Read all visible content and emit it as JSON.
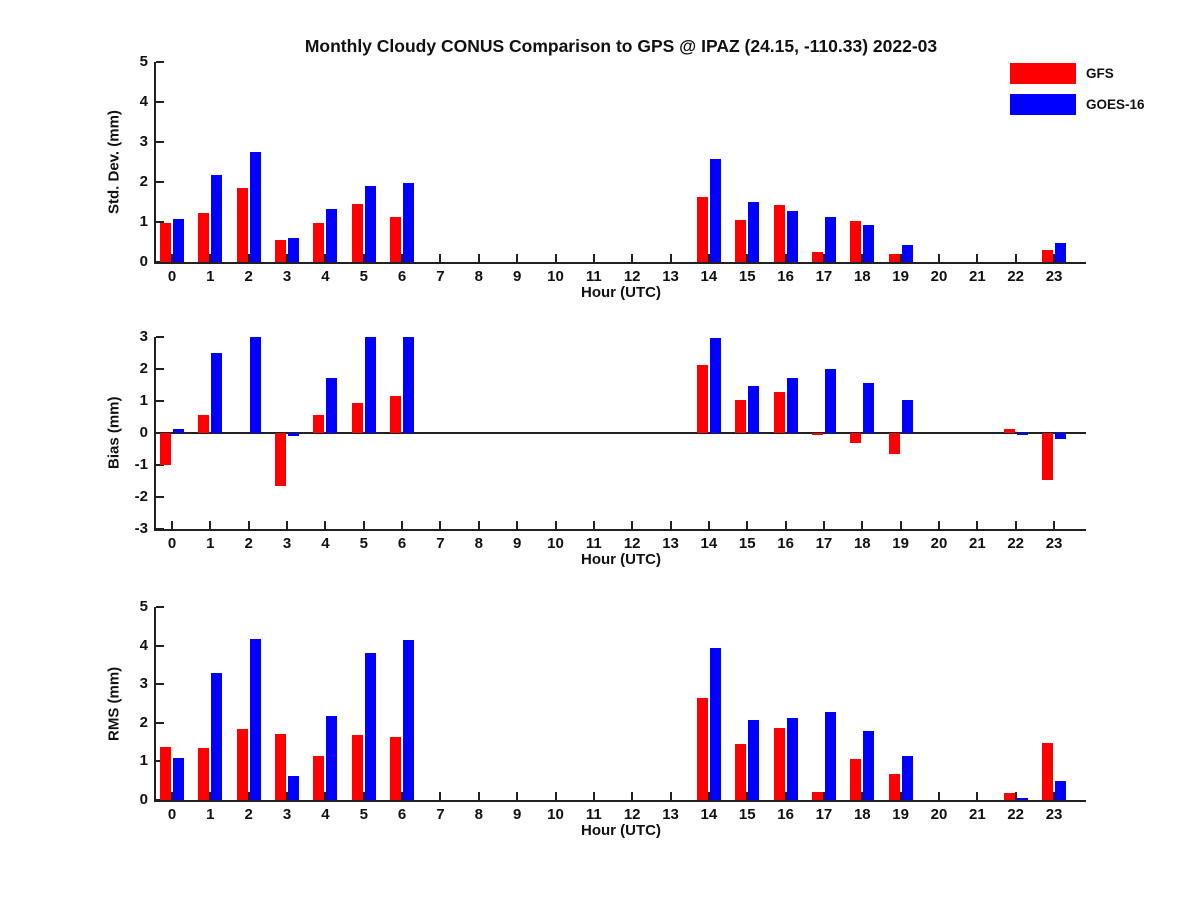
{
  "figure": {
    "title": "Monthly Cloudy CONUS Comparison to GPS @ IPAZ (24.15, -110.33) 2022-03"
  },
  "legend": {
    "position": "top-right",
    "items": [
      {
        "label": "GFS",
        "color": "#ff0000"
      },
      {
        "label": "GOES-16",
        "color": "#0000ff"
      }
    ]
  },
  "chart_data": [
    {
      "type": "bar",
      "ylabel": "Std. Dev. (mm)",
      "xlabel": "Hour (UTC)",
      "ylim": [
        0,
        5
      ],
      "yticks": [
        0,
        1,
        2,
        3,
        4,
        5
      ],
      "grid": false,
      "categories": [
        0,
        1,
        2,
        3,
        4,
        5,
        6,
        7,
        8,
        9,
        10,
        11,
        12,
        13,
        14,
        15,
        16,
        17,
        18,
        19,
        20,
        21,
        22,
        23
      ],
      "series": [
        {
          "name": "GFS",
          "color": "#ff0000",
          "values": [
            0.97,
            1.22,
            1.85,
            0.55,
            0.97,
            1.45,
            1.13,
            null,
            null,
            null,
            null,
            null,
            null,
            null,
            1.62,
            1.05,
            1.43,
            0.25,
            1.03,
            0.2,
            null,
            null,
            null,
            0.3
          ]
        },
        {
          "name": "GOES-16",
          "color": "#0000ff",
          "values": [
            1.08,
            2.17,
            2.75,
            0.6,
            1.33,
            1.9,
            1.97,
            null,
            null,
            null,
            null,
            null,
            null,
            null,
            2.58,
            1.5,
            1.28,
            1.12,
            0.93,
            0.43,
            null,
            null,
            null,
            0.47
          ]
        }
      ]
    },
    {
      "type": "bar",
      "ylabel": "Bias (mm)",
      "xlabel": "Hour (UTC)",
      "ylim": [
        -3,
        3
      ],
      "yticks": [
        -3,
        -2,
        -1,
        0,
        1,
        2,
        3
      ],
      "grid": false,
      "zero_line": true,
      "categories": [
        0,
        1,
        2,
        3,
        4,
        5,
        6,
        7,
        8,
        9,
        10,
        11,
        12,
        13,
        14,
        15,
        16,
        17,
        18,
        19,
        20,
        21,
        22,
        23
      ],
      "series": [
        {
          "name": "GFS",
          "color": "#ff0000",
          "values": [
            -1.0,
            0.55,
            null,
            -1.65,
            0.57,
            0.93,
            1.17,
            null,
            null,
            null,
            null,
            null,
            null,
            null,
            2.12,
            1.02,
            1.27,
            -0.07,
            -0.3,
            -0.67,
            null,
            null,
            0.13,
            -1.47
          ]
        },
        {
          "name": "GOES-16",
          "color": "#0000ff",
          "values": [
            0.12,
            2.5,
            3.0,
            -0.08,
            1.72,
            3.0,
            3.0,
            null,
            null,
            null,
            null,
            null,
            null,
            null,
            2.97,
            1.48,
            1.73,
            2.0,
            1.55,
            1.03,
            null,
            null,
            -0.05,
            -0.2
          ]
        }
      ]
    },
    {
      "type": "bar",
      "ylabel": "RMS (mm)",
      "xlabel": "Hour (UTC)",
      "ylim": [
        0,
        5
      ],
      "yticks": [
        0,
        1,
        2,
        3,
        4,
        5
      ],
      "grid": false,
      "categories": [
        0,
        1,
        2,
        3,
        4,
        5,
        6,
        7,
        8,
        9,
        10,
        11,
        12,
        13,
        14,
        15,
        16,
        17,
        18,
        19,
        20,
        21,
        22,
        23
      ],
      "series": [
        {
          "name": "GFS",
          "color": "#ff0000",
          "values": [
            1.38,
            1.35,
            1.85,
            1.7,
            1.13,
            1.68,
            1.63,
            null,
            null,
            null,
            null,
            null,
            null,
            null,
            2.65,
            1.45,
            1.87,
            0.22,
            1.07,
            0.68,
            null,
            null,
            0.17,
            1.48
          ]
        },
        {
          "name": "GOES-16",
          "color": "#0000ff",
          "values": [
            1.08,
            3.3,
            4.17,
            0.62,
            2.17,
            3.8,
            4.15,
            null,
            null,
            null,
            null,
            null,
            null,
            null,
            3.95,
            2.08,
            2.13,
            2.27,
            1.78,
            1.13,
            null,
            null,
            0.06,
            0.48
          ]
        }
      ]
    }
  ]
}
